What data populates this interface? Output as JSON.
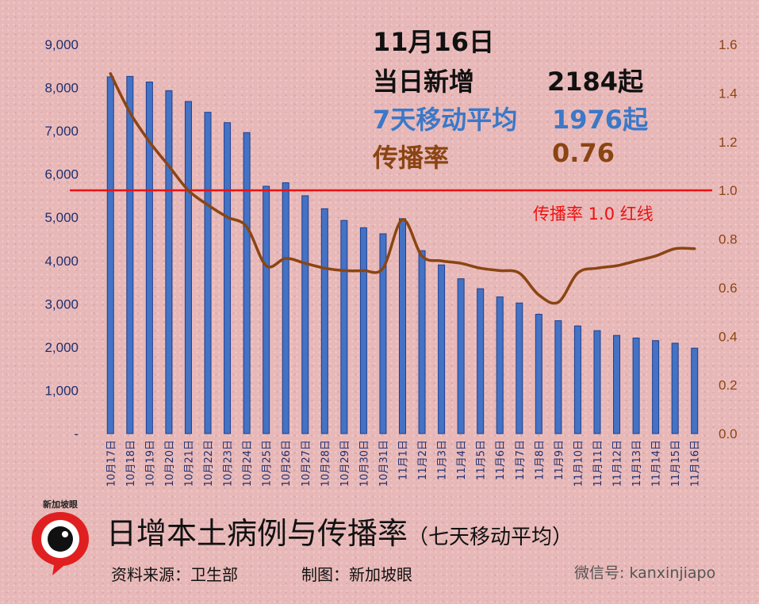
{
  "annotation": {
    "date": "11月16日",
    "new_cases_label": "当日新增",
    "new_cases_value": "2184起",
    "ma_label": "7天移动平均",
    "ma_value": "1976起",
    "rate_label": "传播率",
    "rate_value": "0.76"
  },
  "footer": {
    "title_main": "日增本土病例与传播率",
    "title_paren": "（七天移动平均）",
    "source": "资料来源：卫生部",
    "made_by": "制图：新加坡眼",
    "wechat": "微信号: kanxinjiapo",
    "logo_text": "新加坡眼"
  },
  "colors": {
    "bar": "#4472c4",
    "bar_edge": "#1f3f8f",
    "line": "#8b4513",
    "redline": "#ee1111",
    "left_axis_text": "#1f2f6f",
    "right_axis_text": "#8b4513"
  },
  "chart_data": {
    "type": "bar",
    "categories": [
      "10月17日",
      "10月18日",
      "10月19日",
      "10月20日",
      "10月21日",
      "10月22日",
      "10月23日",
      "10月24日",
      "10月25日",
      "10月26日",
      "10月27日",
      "10月28日",
      "10月29日",
      "10月30日",
      "10月31日",
      "11月1日",
      "11月2日",
      "11月3日",
      "11月4日",
      "11月5日",
      "11月6日",
      "11月7日",
      "11月8日",
      "11月9日",
      "11月10日",
      "11月11日",
      "11月12日",
      "11月13日",
      "11月14日",
      "11月15日",
      "11月16日"
    ],
    "series": [
      {
        "axis": "left",
        "type": "bar",
        "values": [
          8250,
          8260,
          8130,
          7930,
          7680,
          7430,
          7190,
          6960,
          5720,
          5800,
          5500,
          5200,
          4930,
          4760,
          4620,
          4970,
          4230,
          3900,
          3580,
          3350,
          3160,
          3020,
          2760,
          2610,
          2490,
          2380,
          2270,
          2210,
          2150,
          2090,
          1976
        ]
      },
      {
        "axis": "right",
        "type": "line",
        "values": [
          1.48,
          1.32,
          1.2,
          1.1,
          1.0,
          0.94,
          0.89,
          0.85,
          0.69,
          0.72,
          0.7,
          0.68,
          0.67,
          0.67,
          0.68,
          0.88,
          0.73,
          0.71,
          0.7,
          0.68,
          0.67,
          0.66,
          0.57,
          0.54,
          0.66,
          0.68,
          0.69,
          0.71,
          0.73,
          0.76,
          0.76
        ]
      }
    ],
    "y_left": {
      "min": 0,
      "max": 9000,
      "step": 1000,
      "tick_labels": [
        "-",
        "1,000",
        "2,000",
        "3,000",
        "4,000",
        "5,000",
        "6,000",
        "7,000",
        "8,000",
        "9,000"
      ]
    },
    "y_right": {
      "min": 0,
      "max": 1.6,
      "step": 0.2,
      "tick_labels": [
        "0.0",
        "0.2",
        "0.4",
        "0.6",
        "0.8",
        "1.0",
        "1.2",
        "1.4",
        "1.6"
      ]
    },
    "reference_line": {
      "axis": "right",
      "value": 1.0,
      "label": "传播率 1.0  红线"
    },
    "grid": false,
    "legend": "none"
  }
}
